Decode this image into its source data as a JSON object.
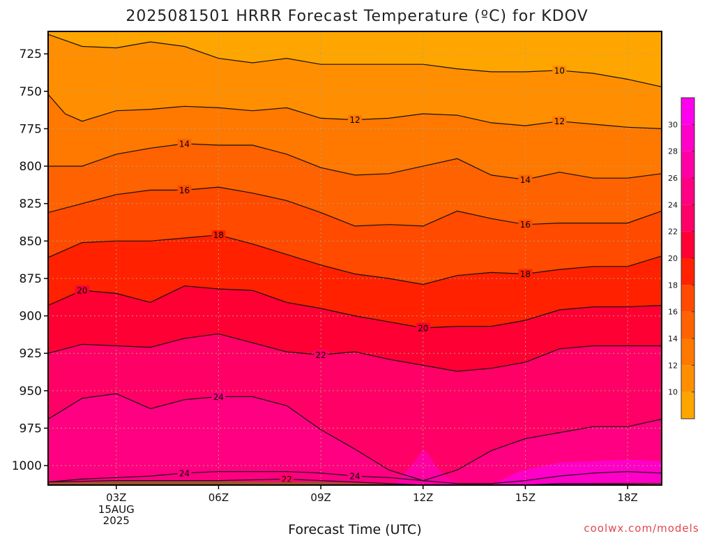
{
  "title": "2025081501 HRRR Forecast Temperature (ºC) for KDOV",
  "credit": "coolwx.com/models",
  "chart_data": {
    "type": "heatmap",
    "title": "2025081501 HRRR Forecast Temperature (ºC) for KDOV",
    "xlabel": "Forecast Time (UTC)",
    "ylabel": "",
    "x_unit": "forecast hour (UTC), 15 Aug 2025",
    "x_range": [
      1,
      19
    ],
    "y_range": [
      1013,
      710
    ],
    "y_ticks": [
      725,
      750,
      775,
      800,
      825,
      850,
      875,
      900,
      925,
      950,
      975,
      1000
    ],
    "y_tick_labels": [
      "725",
      "750",
      "775",
      "800",
      "825",
      "850",
      "875",
      "900",
      "925",
      "950",
      "975",
      "1000"
    ],
    "x_ticks": [
      {
        "hour": 3,
        "label": "03Z",
        "sub": [
          "15AUG",
          "2025"
        ]
      },
      {
        "hour": 6,
        "label": "06Z"
      },
      {
        "hour": 9,
        "label": "09Z"
      },
      {
        "hour": 12,
        "label": "12Z"
      },
      {
        "hour": 15,
        "label": "15Z"
      },
      {
        "hour": 18,
        "label": "18Z"
      }
    ],
    "grid": true,
    "ground_surface": {
      "hours": [
        1,
        3,
        6,
        9,
        12,
        15,
        19
      ],
      "pressure": [
        1011.5,
        1010.5,
        1010.5,
        1011,
        1013,
        1013,
        1012
      ]
    },
    "contour_levels": [
      10,
      12,
      14,
      16,
      18,
      20,
      22,
      24
    ],
    "colorbar": {
      "levels": [
        8,
        10,
        12,
        14,
        16,
        18,
        20,
        22,
        24,
        26,
        28,
        30,
        32
      ],
      "tick_labels": [
        "10",
        "12",
        "14",
        "16",
        "18",
        "20",
        "22",
        "24",
        "26",
        "28",
        "30"
      ],
      "colors": [
        "#ffa500",
        "#ff8f00",
        "#ff7800",
        "#ff6200",
        "#ff4a00",
        "#ff2100",
        "#ff0035",
        "#ff0067",
        "#ff0082",
        "#ff00a5",
        "#ff00c8",
        "#ff00ef"
      ]
    },
    "isotherms": [
      {
        "value": 10,
        "hours": [
          1,
          2,
          3,
          4,
          5,
          6,
          7,
          8,
          9,
          10,
          11,
          12,
          13,
          14,
          15,
          16,
          17,
          18,
          19
        ],
        "pressure": [
          712,
          720,
          721,
          717,
          720,
          728,
          731,
          728,
          732,
          732,
          732,
          732,
          735,
          737,
          737,
          736,
          738,
          742,
          747
        ],
        "labels": [
          {
            "hour": 16,
            "text": "10"
          }
        ]
      },
      {
        "value": 12,
        "hours": [
          1,
          1.5,
          2,
          3,
          4,
          5,
          6,
          7,
          8,
          9,
          10,
          11,
          12,
          13,
          14,
          15,
          16,
          17,
          18,
          19
        ],
        "pressure": [
          752,
          765,
          770,
          763,
          762,
          760,
          761,
          763,
          761,
          768,
          769,
          768,
          765,
          766,
          771,
          773,
          770,
          772,
          774,
          775
        ],
        "labels": [
          {
            "hour": 10,
            "text": "12"
          },
          {
            "hour": 16,
            "text": "12"
          }
        ]
      },
      {
        "value": 14,
        "hours": [
          1,
          2,
          3,
          4,
          5,
          6,
          7,
          8,
          9,
          10,
          11,
          12,
          13,
          14,
          15,
          16,
          17,
          18,
          19
        ],
        "pressure": [
          800,
          800,
          792,
          788,
          785,
          786,
          786,
          792,
          801,
          806,
          805,
          800,
          795,
          806,
          809,
          804,
          808,
          808,
          805
        ],
        "labels": [
          {
            "hour": 5,
            "text": "14"
          },
          {
            "hour": 15,
            "text": "14"
          }
        ]
      },
      {
        "value": 16,
        "hours": [
          1,
          2,
          3,
          4,
          5,
          6,
          7,
          8,
          9,
          10,
          11,
          12,
          13,
          14,
          15,
          16,
          17,
          18,
          19
        ],
        "pressure": [
          831,
          825,
          819,
          816,
          816,
          814,
          818,
          823,
          831,
          840,
          839,
          840,
          830,
          835,
          839,
          838,
          838,
          838,
          830
        ],
        "labels": [
          {
            "hour": 5,
            "text": "16"
          },
          {
            "hour": 15,
            "text": "16"
          }
        ]
      },
      {
        "value": 18,
        "hours": [
          1,
          2,
          3,
          4,
          5,
          6,
          7,
          8,
          9,
          10,
          11,
          12,
          13,
          14,
          15,
          16,
          17,
          18,
          19
        ],
        "pressure": [
          861,
          851,
          850,
          850,
          848,
          846,
          852,
          859,
          866,
          872,
          875,
          879,
          873,
          871,
          872,
          869,
          867,
          867,
          860
        ],
        "labels": [
          {
            "hour": 6,
            "text": "18"
          },
          {
            "hour": 15,
            "text": "18"
          }
        ]
      },
      {
        "value": 20,
        "hours": [
          1,
          2,
          3,
          3.5,
          4,
          5,
          6,
          7,
          8,
          9,
          10,
          11,
          12,
          13,
          14,
          15,
          16,
          17,
          18,
          19
        ],
        "pressure": [
          893,
          883,
          885,
          888,
          891,
          880,
          882,
          883,
          891,
          895,
          900,
          904,
          908,
          907,
          907,
          903,
          896,
          894,
          894,
          893
        ],
        "labels": [
          {
            "hour": 2,
            "text": "20"
          },
          {
            "hour": 12,
            "text": "20"
          }
        ]
      },
      {
        "value": 22,
        "hours": [
          1,
          2,
          3,
          4,
          5,
          6,
          7,
          8,
          9,
          10,
          11,
          12,
          13,
          14,
          15,
          16,
          17,
          18,
          19
        ],
        "pressure": [
          925,
          919,
          920,
          921,
          915,
          912,
          918,
          924,
          926,
          924,
          929,
          933,
          937,
          935,
          931,
          922,
          920,
          920,
          920
        ],
        "labels": [
          {
            "hour": 9,
            "text": "22"
          }
        ]
      },
      {
        "value": 24,
        "hours": [
          1,
          2,
          3,
          4,
          5,
          6,
          7,
          8,
          9,
          10,
          11,
          12,
          13,
          14,
          15,
          16,
          17,
          18,
          19
        ],
        "pressure": [
          969,
          955,
          952,
          962,
          956,
          954,
          954,
          960,
          976,
          989,
          1003,
          1010,
          1003,
          990,
          982,
          978,
          974,
          974,
          969
        ],
        "labels": [
          {
            "hour": 6,
            "text": "24"
          }
        ]
      },
      {
        "value": 24,
        "hours": [
          1,
          2,
          3,
          4,
          5,
          6,
          7,
          8,
          9,
          10,
          11,
          12,
          13,
          14,
          15,
          16,
          17,
          18,
          19
        ],
        "pressure": [
          1011,
          1009,
          1008,
          1007,
          1005,
          1004,
          1004,
          1004,
          1005,
          1007,
          1008,
          1010,
          1012,
          1012,
          1010,
          1007,
          1005,
          1004,
          1005
        ],
        "labels": [
          {
            "hour": 5,
            "text": "24"
          },
          {
            "hour": 10,
            "text": "24"
          }
        ]
      },
      {
        "value": 22,
        "hours": [
          1,
          3,
          6,
          8,
          9,
          10,
          11,
          12,
          13,
          14,
          15,
          16,
          17,
          18,
          19
        ],
        "pressure": [
          1011,
          1010,
          1010,
          1009,
          1010,
          1011,
          1012,
          1013,
          1013,
          1013,
          1013,
          1012,
          1012,
          1012,
          1012
        ],
        "labels": [
          {
            "hour": 8,
            "text": "22"
          }
        ]
      }
    ]
  }
}
